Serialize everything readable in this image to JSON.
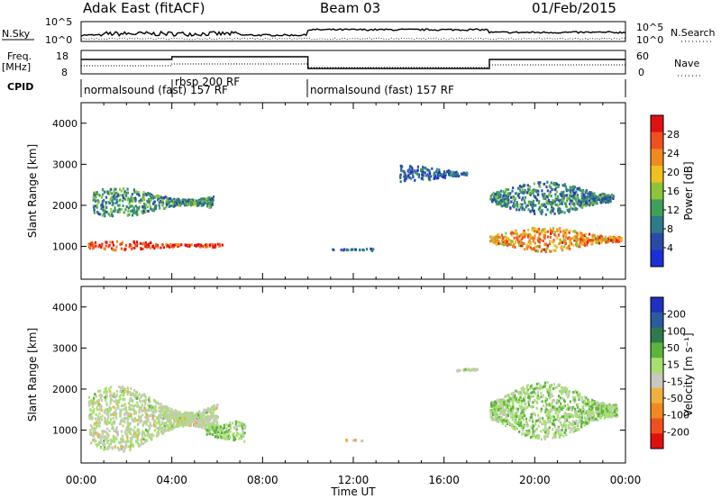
{
  "header": {
    "site": "Adak East (fitACF)",
    "beam": "Beam 03",
    "date": "01/Feb/2015"
  },
  "top_panels": {
    "nsky_label": "N.Sky",
    "nsearch_label": "N.Search",
    "noise_ticks_left": [
      "10^5",
      "10^0"
    ],
    "noise_ticks_right": [
      "10^5",
      "10^0"
    ],
    "freq_label": "Freq.",
    "freq_unit": "[MHz]",
    "freq_ticks": [
      "18",
      "8"
    ],
    "nave_label": "Nave",
    "nave_ticks": [
      "60",
      "0"
    ],
    "cpid_label": "CPID",
    "cpid_segments": [
      "normalsound (fast) 157 RF",
      "rbsp 200 RF",
      "normalsound (fast) 157 RF"
    ]
  },
  "colors": {
    "power": [
      "#1a2fd6",
      "#2a4aa8",
      "#2f7a8c",
      "#3fa05a",
      "#8cc43c",
      "#f0c020",
      "#f08a20",
      "#f0501e",
      "#e01010"
    ],
    "velocity": [
      "#2030c0",
      "#2a5aa0",
      "#2f7a4a",
      "#5cb43c",
      "#a8e070",
      "#c8c8c0",
      "#f0b040",
      "#f08a20",
      "#f05020",
      "#e01010"
    ]
  },
  "chart_data": [
    {
      "type": "heatmap",
      "title": "Power",
      "xlabel": "Time UT",
      "ylabel": "Slant Range [km]",
      "xlim": [
        0,
        24
      ],
      "ylim": [
        200,
        4500
      ],
      "x_ticks": [
        "00:00",
        "04:00",
        "08:00",
        "12:00",
        "16:00",
        "20:00",
        "00:00"
      ],
      "y_ticks": [
        "1000",
        "2000",
        "3000",
        "4000"
      ],
      "colorbar": {
        "label": "Power [dB]",
        "ticks": [
          "4",
          "8",
          "12",
          "16",
          "20",
          "24",
          "28"
        ],
        "range": [
          0,
          30
        ]
      },
      "features": [
        {
          "t_start": 0.3,
          "t_end": 6.2,
          "range_center": 1050,
          "range_width": 220,
          "power": 28
        },
        {
          "t_start": 0.5,
          "t_end": 5.8,
          "range_center": 2100,
          "range_width": 700,
          "power": 10
        },
        {
          "t_start": 18.0,
          "t_end": 23.8,
          "range_center": 1200,
          "range_width": 600,
          "power": 22
        },
        {
          "t_start": 18.0,
          "t_end": 23.5,
          "range_center": 2200,
          "range_width": 800,
          "power": 8
        },
        {
          "t_start": 14.0,
          "t_end": 17.0,
          "range_center": 2800,
          "range_width": 400,
          "power": 5
        },
        {
          "t_start": 11.0,
          "t_end": 13.0,
          "range_center": 950,
          "range_width": 80,
          "power": 5
        }
      ]
    },
    {
      "type": "heatmap",
      "title": "Velocity",
      "xlabel": "Time UT",
      "ylabel": "Slant Range [km]",
      "xlim": [
        0,
        24
      ],
      "ylim": [
        200,
        4500
      ],
      "x_ticks": [
        "00:00",
        "04:00",
        "08:00",
        "12:00",
        "16:00",
        "20:00",
        "00:00"
      ],
      "y_ticks": [
        "1000",
        "2000",
        "3000",
        "4000"
      ],
      "colorbar": {
        "label": "Velocity [m s⁻¹]",
        "ticks": [
          "200",
          "100",
          "50",
          "15",
          "-15",
          "-50",
          "-100",
          "-200"
        ],
        "range": [
          -250,
          250
        ]
      },
      "features": [
        {
          "t_start": 0.3,
          "t_end": 6.0,
          "range_center": 1300,
          "range_width": 1600,
          "velocity": 0
        },
        {
          "t_start": 18.0,
          "t_end": 23.6,
          "range_center": 1500,
          "range_width": 1400,
          "velocity": 30
        },
        {
          "t_start": 5.5,
          "t_end": 7.2,
          "range_center": 1000,
          "range_width": 600,
          "velocity": 40
        },
        {
          "t_start": 16.5,
          "t_end": 17.5,
          "range_center": 2500,
          "range_width": 200,
          "velocity": 0
        },
        {
          "t_start": 11.5,
          "t_end": 12.5,
          "range_center": 780,
          "range_width": 60,
          "velocity": -60
        }
      ]
    }
  ]
}
